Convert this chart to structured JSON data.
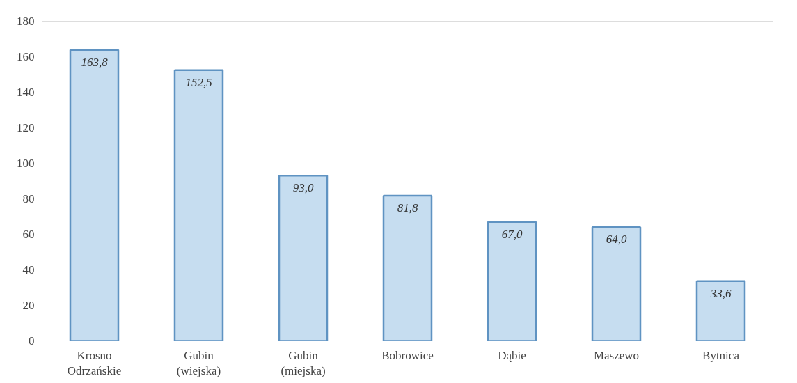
{
  "chart_data": {
    "type": "bar",
    "categories": [
      "Krosno\nOdrzańskie",
      "Gubin\n(wiejska)",
      "Gubin\n(miejska)",
      "Bobrowice",
      "Dąbie",
      "Maszewo",
      "Bytnica"
    ],
    "values": [
      163.8,
      152.5,
      93.0,
      81.8,
      67.0,
      64.0,
      33.6
    ],
    "value_labels": [
      "163,8",
      "152,5",
      "93,0",
      "81,8",
      "67,0",
      "64,0",
      "33,6"
    ],
    "color": "#c6ddf0",
    "ylim": [
      0,
      180
    ],
    "yticks": [
      0,
      20,
      40,
      60,
      80,
      100,
      120,
      140,
      160,
      180
    ],
    "grid": false
  }
}
